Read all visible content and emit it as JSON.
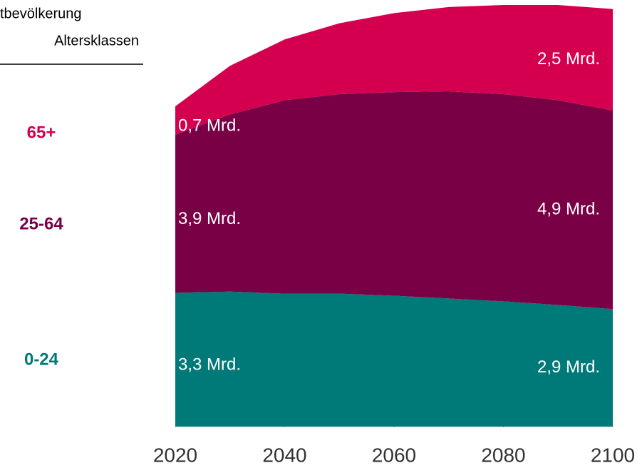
{
  "chart_data": {
    "type": "stacked_area",
    "title": "tbevölkerung",
    "subtitle": "Altersklassen",
    "x": [
      2020,
      2030,
      2040,
      2050,
      2060,
      2070,
      2080,
      2090,
      2100
    ],
    "xlim": [
      2020,
      2100
    ],
    "xticks": [
      2020,
      2040,
      2060,
      2080,
      2100
    ],
    "series": [
      {
        "name": "0-24",
        "color": "#007a78",
        "values": [
          3.3,
          3.33,
          3.28,
          3.28,
          3.23,
          3.16,
          3.09,
          3.0,
          2.9
        ],
        "value_labels": [
          "3,3 Mrd.",
          null,
          null,
          null,
          null,
          null,
          null,
          null,
          "2,9 Mrd."
        ]
      },
      {
        "name": "25-64",
        "color": "#7a0046",
        "values": [
          3.9,
          4.37,
          4.77,
          4.92,
          5.02,
          5.11,
          5.11,
          5.05,
          4.9
        ],
        "value_labels": [
          "3,9 Mrd.",
          null,
          null,
          null,
          null,
          null,
          null,
          null,
          "4,9 Mrd."
        ]
      },
      {
        "name": "65+",
        "color": "#d4004f",
        "values": [
          0.7,
          1.2,
          1.5,
          1.75,
          1.95,
          2.08,
          2.2,
          2.35,
          2.5
        ],
        "value_labels": [
          "0,7 Mrd.",
          null,
          null,
          null,
          null,
          null,
          null,
          null,
          "2,5 Mrd."
        ]
      }
    ]
  }
}
